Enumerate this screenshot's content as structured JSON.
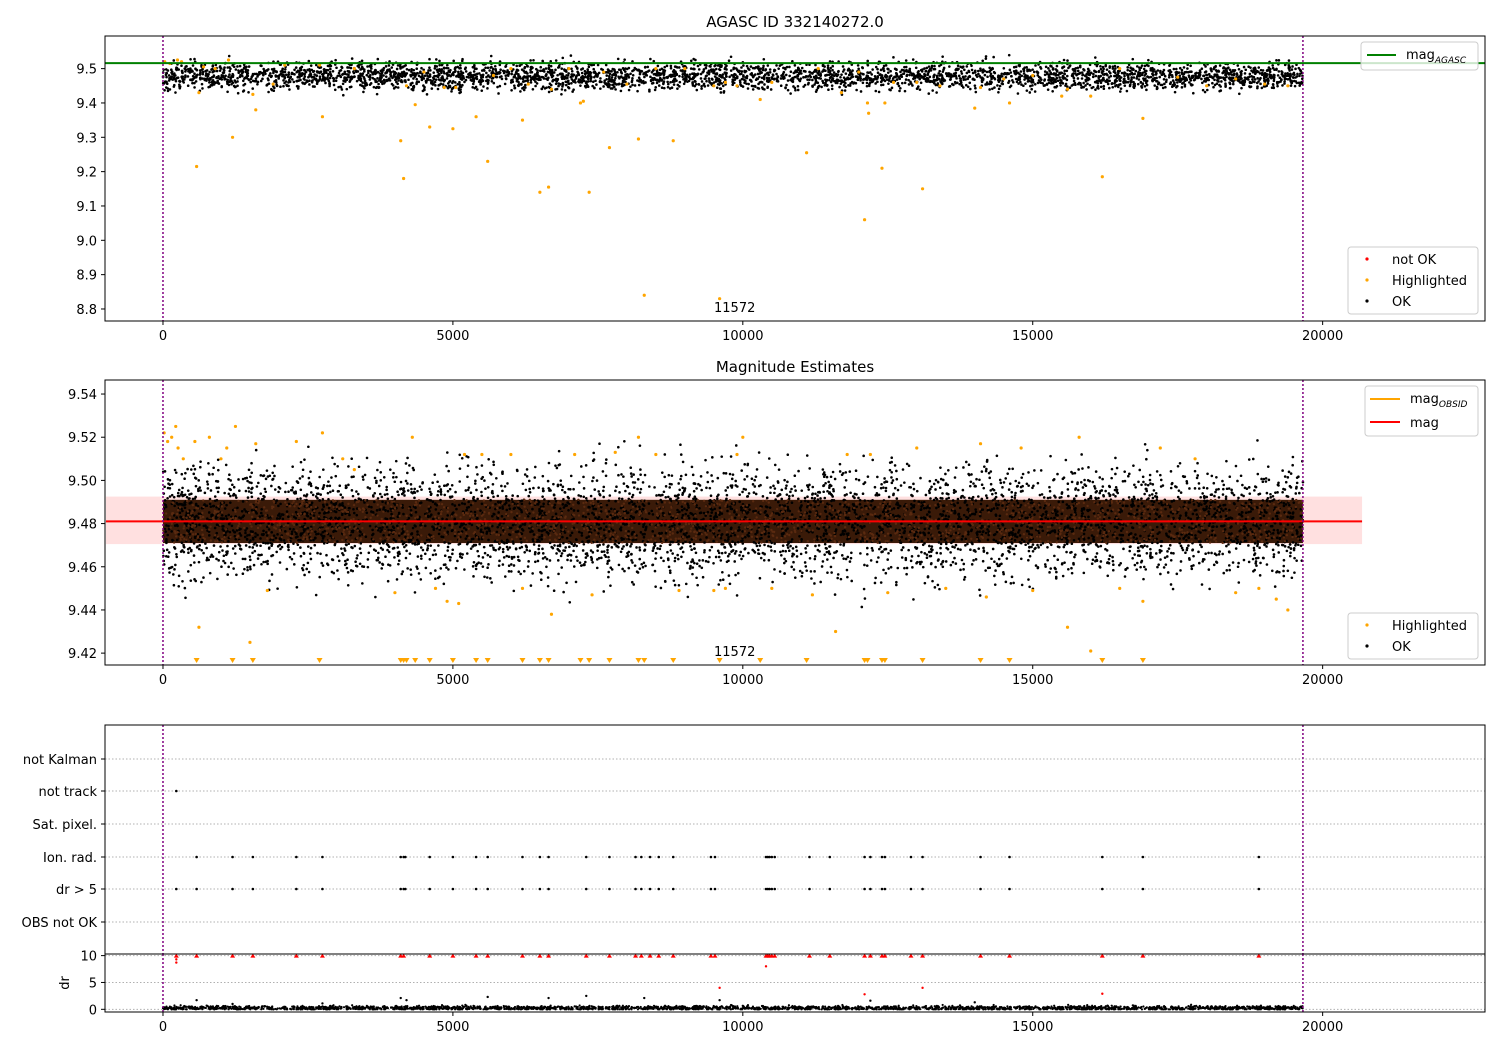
{
  "chart_data": [
    {
      "type": "scatter",
      "title": "AGASC ID 332140272.0",
      "xlabel": "",
      "ylabel": "",
      "xlim": [
        -1000,
        22800
      ],
      "ylim": [
        8.765,
        9.595
      ],
      "xticks": [
        0,
        5000,
        10000,
        15000,
        20000
      ],
      "xtick_labels": [
        "0",
        "5000",
        "10000",
        "15000",
        "20000"
      ],
      "yticks": [
        8.8,
        8.9,
        9.0,
        9.1,
        9.2,
        9.3,
        9.4,
        9.5
      ],
      "ytick_labels": [
        "8.8",
        "8.9",
        "9.0",
        "9.1",
        "9.2",
        "9.3",
        "9.4",
        "9.5"
      ],
      "obs_boundaries": [
        0,
        19660
      ],
      "obsid_label": {
        "text": "11572",
        "x": 9860
      },
      "lines": [
        {
          "name": "mag",
          "subscript": "AGASC",
          "y": 9.516,
          "color": "#008000"
        }
      ],
      "legend_lines": [
        "mag_AGASC"
      ],
      "legend_points": [
        {
          "name": "not OK",
          "color": "#ff0000"
        },
        {
          "name": "Highlighted",
          "color": "#ffa500"
        },
        {
          "name": "OK",
          "color": "#000000"
        }
      ],
      "series": [
        {
          "name": "OK",
          "color": "#000000",
          "description_range": {
            "x": [
              0,
              19660
            ],
            "y_center": 9.478,
            "y_spread": 0.02
          }
        },
        {
          "name": "Highlighted",
          "color": "#ffa500",
          "points": [
            [
              30,
              9.52
            ],
            [
              120,
              9.515
            ],
            [
              250,
              9.525
            ],
            [
              320,
              9.52
            ],
            [
              580,
              9.215
            ],
            [
              620,
              9.43
            ],
            [
              700,
              9.505
            ],
            [
              900,
              9.5
            ],
            [
              1130,
              9.525
            ],
            [
              1200,
              9.3
            ],
            [
              1550,
              9.425
            ],
            [
              1600,
              9.38
            ],
            [
              1900,
              9.455
            ],
            [
              2100,
              9.51
            ],
            [
              2700,
              9.51
            ],
            [
              2750,
              9.36
            ],
            [
              3300,
              9.5
            ],
            [
              4100,
              9.29
            ],
            [
              4150,
              9.18
            ],
            [
              4200,
              9.45
            ],
            [
              4350,
              9.395
            ],
            [
              4500,
              9.49
            ],
            [
              4600,
              9.33
            ],
            [
              4850,
              9.445
            ],
            [
              5000,
              9.325
            ],
            [
              5050,
              9.445
            ],
            [
              5400,
              9.36
            ],
            [
              5600,
              9.23
            ],
            [
              5700,
              9.48
            ],
            [
              6000,
              9.5
            ],
            [
              6200,
              9.35
            ],
            [
              6300,
              9.455
            ],
            [
              6500,
              9.14
            ],
            [
              6650,
              9.155
            ],
            [
              6700,
              9.44
            ],
            [
              7000,
              9.5
            ],
            [
              7200,
              9.4
            ],
            [
              7250,
              9.405
            ],
            [
              7350,
              9.14
            ],
            [
              7600,
              9.49
            ],
            [
              7700,
              9.27
            ],
            [
              8000,
              9.455
            ],
            [
              8200,
              9.295
            ],
            [
              8300,
              8.84
            ],
            [
              8500,
              9.5
            ],
            [
              8800,
              9.29
            ],
            [
              9000,
              9.5
            ],
            [
              9500,
              9.45
            ],
            [
              9600,
              8.83
            ],
            [
              9700,
              9.46
            ],
            [
              9900,
              9.45
            ],
            [
              10300,
              9.41
            ],
            [
              10500,
              9.46
            ],
            [
              11100,
              9.255
            ],
            [
              11300,
              9.5
            ],
            [
              11700,
              9.43
            ],
            [
              12000,
              9.49
            ],
            [
              12100,
              9.06
            ],
            [
              12150,
              9.4
            ],
            [
              12170,
              9.37
            ],
            [
              12400,
              9.21
            ],
            [
              12450,
              9.4
            ],
            [
              12600,
              9.46
            ],
            [
              13000,
              9.46
            ],
            [
              13100,
              9.15
            ],
            [
              13400,
              9.45
            ],
            [
              14000,
              9.385
            ],
            [
              14100,
              9.445
            ],
            [
              14500,
              9.47
            ],
            [
              14600,
              9.4
            ],
            [
              15000,
              9.48
            ],
            [
              15500,
              9.42
            ],
            [
              15600,
              9.44
            ],
            [
              16000,
              9.42
            ],
            [
              16200,
              9.185
            ],
            [
              16500,
              9.5
            ],
            [
              16900,
              9.355
            ],
            [
              17500,
              9.475
            ],
            [
              18000,
              9.45
            ],
            [
              18500,
              9.47
            ],
            [
              19000,
              9.455
            ],
            [
              19400,
              9.45
            ]
          ]
        },
        {
          "name": "not OK",
          "color": "#ff0000",
          "points": []
        }
      ]
    },
    {
      "type": "scatter",
      "title": "Magnitude Estimates",
      "xlabel": "",
      "ylabel": "",
      "xlim": [
        -1000,
        22800
      ],
      "ylim": [
        9.4145,
        9.5465
      ],
      "xticks": [
        0,
        5000,
        10000,
        15000,
        20000
      ],
      "xtick_labels": [
        "0",
        "5000",
        "10000",
        "15000",
        "20000"
      ],
      "yticks": [
        9.42,
        9.44,
        9.46,
        9.48,
        9.5,
        9.52,
        9.54
      ],
      "ytick_labels": [
        "9.42",
        "9.44",
        "9.46",
        "9.48",
        "9.50",
        "9.52",
        "9.54"
      ],
      "obs_boundaries": [
        0,
        19660
      ],
      "obsid_label": {
        "text": "11572",
        "x": 9860
      },
      "mag": 9.481,
      "mag_band": [
        9.4705,
        9.4925
      ],
      "legend_lines": [
        {
          "name": "mag",
          "subscript": "OBSID",
          "color": "#ffa500"
        },
        {
          "name": "mag",
          "subscript": "",
          "color": "#ff0000"
        }
      ],
      "legend_points": [
        {
          "name": "Highlighted",
          "color": "#ffa500"
        },
        {
          "name": "OK",
          "color": "#000000"
        }
      ],
      "series": [
        {
          "name": "OK",
          "color": "#000000",
          "description_range": {
            "x": [
              0,
              19660
            ],
            "y_center": 9.481,
            "y_spread": 0.013
          }
        },
        {
          "name": "Highlighted",
          "color": "#ffa500",
          "points": [
            [
              20,
              9.522
            ],
            [
              80,
              9.518
            ],
            [
              150,
              9.52
            ],
            [
              220,
              9.525
            ],
            [
              260,
              9.515
            ],
            [
              350,
              9.51
            ],
            [
              550,
              9.518
            ],
            [
              620,
              9.432
            ],
            [
              800,
              9.52
            ],
            [
              1000,
              9.51
            ],
            [
              1100,
              9.515
            ],
            [
              1250,
              9.525
            ],
            [
              1500,
              9.425
            ],
            [
              1600,
              9.517
            ],
            [
              1800,
              9.449
            ],
            [
              2300,
              9.518
            ],
            [
              2750,
              9.522
            ],
            [
              3100,
              9.51
            ],
            [
              3300,
              9.505
            ],
            [
              4000,
              9.448
            ],
            [
              4300,
              9.52
            ],
            [
              4700,
              9.45
            ],
            [
              4900,
              9.444
            ],
            [
              5100,
              9.443
            ],
            [
              5200,
              9.512
            ],
            [
              5500,
              9.512
            ],
            [
              6000,
              9.512
            ],
            [
              6200,
              9.45
            ],
            [
              6700,
              9.438
            ],
            [
              7100,
              9.512
            ],
            [
              7400,
              9.447
            ],
            [
              7800,
              9.513
            ],
            [
              8200,
              9.52
            ],
            [
              8500,
              9.512
            ],
            [
              8900,
              9.449
            ],
            [
              9500,
              9.449
            ],
            [
              9700,
              9.45
            ],
            [
              9900,
              9.512
            ],
            [
              10000,
              9.52
            ],
            [
              10500,
              9.45
            ],
            [
              11200,
              9.447
            ],
            [
              11600,
              9.43
            ],
            [
              11800,
              9.512
            ],
            [
              12200,
              9.512
            ],
            [
              12500,
              9.448
            ],
            [
              13000,
              9.515
            ],
            [
              13500,
              9.45
            ],
            [
              14100,
              9.517
            ],
            [
              14200,
              9.446
            ],
            [
              14800,
              9.515
            ],
            [
              15000,
              9.449
            ],
            [
              15600,
              9.432
            ],
            [
              15800,
              9.52
            ],
            [
              16000,
              9.421
            ],
            [
              16500,
              9.45
            ],
            [
              16900,
              9.444
            ],
            [
              17200,
              9.515
            ],
            [
              17800,
              9.51
            ],
            [
              18500,
              9.448
            ],
            [
              18900,
              9.45
            ],
            [
              19200,
              9.445
            ],
            [
              19400,
              9.44
            ]
          ]
        },
        {
          "name": "Highlighted (below range)",
          "color": "#ffa500",
          "marker": "down-triangle",
          "x": [
            580,
            1200,
            1550,
            2700,
            4100,
            4150,
            4200,
            4350,
            4600,
            5000,
            5400,
            5600,
            6200,
            6500,
            6650,
            7200,
            7350,
            7700,
            8200,
            8300,
            8800,
            9600,
            10300,
            11100,
            12100,
            12150,
            12400,
            12450,
            13100,
            14100,
            14600,
            16200,
            16900
          ]
        }
      ]
    },
    {
      "type": "scatter",
      "title": "",
      "xlabel": "",
      "ylabel": "",
      "xlim": [
        -1000,
        22800
      ],
      "obs_boundaries": [
        0,
        19660
      ],
      "categories": [
        "not Kalman",
        "not track",
        "Sat. pixel.",
        "Ion. rad.",
        "dr > 5",
        "OBS not OK"
      ],
      "flags": {
        "not Kalman": [],
        "not track": [
          230
        ],
        "Sat. pixel.": [],
        "Ion. rad.": [
          580,
          1200,
          1550,
          2300,
          2750,
          4100,
          4150,
          4180,
          4600,
          5000,
          5400,
          5600,
          6200,
          6500,
          6650,
          7300,
          7700,
          8150,
          8250,
          8400,
          8550,
          8800,
          9450,
          9520,
          10400,
          10430,
          10460,
          10500,
          10550,
          11150,
          11500,
          12100,
          12200,
          12400,
          12450,
          12900,
          13100,
          14100,
          14600,
          16200,
          16900,
          18900
        ],
        "dr > 5": [
          230,
          580,
          1200,
          1550,
          2300,
          2750,
          4100,
          4150,
          4180,
          4600,
          5000,
          5400,
          5600,
          6200,
          6500,
          6650,
          7300,
          7700,
          8150,
          8250,
          8400,
          8550,
          8800,
          9450,
          9520,
          10400,
          10430,
          10460,
          10500,
          10550,
          11150,
          11500,
          12100,
          12200,
          12400,
          12450,
          12900,
          13100,
          14100,
          14600,
          16200,
          16900,
          18900
        ],
        "OBS not OK": []
      }
    },
    {
      "type": "scatter",
      "title": "",
      "xlabel": "",
      "ylabel": "dr",
      "xlim": [
        -1000,
        22800
      ],
      "ylim": [
        -0.5,
        10.3
      ],
      "xticks": [
        0,
        5000,
        10000,
        15000,
        20000
      ],
      "xtick_labels": [
        "0",
        "5000",
        "10000",
        "15000",
        "20000"
      ],
      "yticks": [
        0,
        5,
        10
      ],
      "ytick_labels": [
        "0",
        "5",
        "10"
      ],
      "obs_boundaries": [
        0,
        19660
      ],
      "series": [
        {
          "name": "OK",
          "color": "#000000",
          "description_range": {
            "x": [
              0,
              19660
            ],
            "y_center": 0.25,
            "y_spread": 0.2
          },
          "points": [
            [
              580,
              1.7
            ],
            [
              1200,
              1.0
            ],
            [
              2750,
              1.1
            ],
            [
              4100,
              2.1
            ],
            [
              4200,
              1.7
            ],
            [
              5600,
              2.3
            ],
            [
              6650,
              2.1
            ],
            [
              7300,
              2.5
            ],
            [
              8300,
              2.1
            ],
            [
              9600,
              1.7
            ],
            [
              12200,
              1.6
            ],
            [
              14000,
              1.3
            ]
          ]
        },
        {
          "name": "not OK (clipped)",
          "color": "#ff0000",
          "marker": "up-triangle",
          "x": [
            230,
            580,
            1200,
            1550,
            2300,
            2750,
            4100,
            4150,
            4600,
            5000,
            5400,
            5600,
            6200,
            6500,
            6650,
            7300,
            7700,
            8150,
            8250,
            8400,
            8550,
            8800,
            9450,
            9520,
            10400,
            10430,
            10460,
            10500,
            10550,
            11150,
            11500,
            12100,
            12200,
            12400,
            12450,
            12900,
            13100,
            14100,
            14600,
            16200,
            16900,
            18900
          ]
        },
        {
          "name": "not OK",
          "color": "#ff0000",
          "points": [
            [
              230,
              8.7
            ],
            [
              230,
              9.3
            ],
            [
              10400,
              8.0
            ],
            [
              9600,
              4.0
            ],
            [
              13100,
              4.0
            ],
            [
              12100,
              2.8
            ],
            [
              16200,
              2.9
            ]
          ]
        }
      ]
    }
  ]
}
